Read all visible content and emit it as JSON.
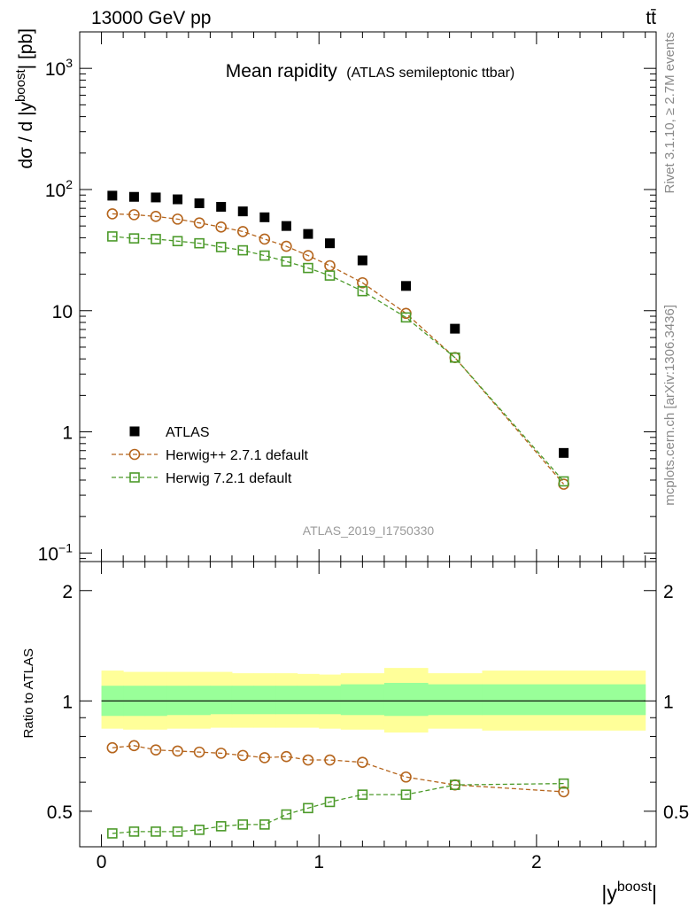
{
  "header": {
    "left_label": "13000 GeV pp",
    "right_label": "tt̄"
  },
  "side_labels": {
    "rivet": "Rivet 3.1.10, ≥ 2.7M events",
    "mcplots": "mcplots.cern.ch [arXiv:1306.3436]"
  },
  "chart_data": [
    {
      "type": "scatter",
      "title": "Mean rapidity",
      "subtitle": "(ATLAS semileptonic ttbar)",
      "ylabel_parts": {
        "pre": "dσ / d |y",
        "sup": "boost",
        "post": "| [pb]"
      },
      "xlabel_parts": {
        "pre": "|y",
        "sup": "boost",
        "post": "|"
      },
      "watermark": "ATLAS_2019_I1750330",
      "yscale": "log",
      "xlim": [
        -0.1,
        2.55
      ],
      "ylim": [
        0.085,
        2000
      ],
      "yticks": [
        {
          "value": 1000,
          "label": "10",
          "sup": "3"
        },
        {
          "value": 100,
          "label": "10",
          "sup": "2"
        },
        {
          "value": 10,
          "label": "10",
          "sup": ""
        },
        {
          "value": 1,
          "label": "1",
          "sup": ""
        },
        {
          "value": 0.1,
          "label": "10",
          "sup": "−1"
        }
      ],
      "legend_position": "lower-left",
      "series": [
        {
          "name": "ATLAS",
          "marker": "filled-square",
          "color": "#000000",
          "x": [
            0.05,
            0.15,
            0.25,
            0.35,
            0.45,
            0.55,
            0.65,
            0.75,
            0.85,
            0.95,
            1.05,
            1.2,
            1.4,
            1.625,
            2.125
          ],
          "y": [
            89,
            87,
            86,
            83,
            77,
            72,
            66,
            59,
            50,
            43,
            36,
            26,
            16,
            7.1,
            0.67
          ]
        },
        {
          "name": "Herwig++ 2.7.1 default",
          "marker": "open-circle",
          "color": "#b5651d",
          "x": [
            0.05,
            0.15,
            0.25,
            0.35,
            0.45,
            0.55,
            0.65,
            0.75,
            0.85,
            0.95,
            1.05,
            1.2,
            1.4,
            1.625,
            2.125
          ],
          "y": [
            63,
            62,
            60,
            57,
            53,
            49,
            45,
            39,
            34,
            28.5,
            23.5,
            17,
            9.5,
            4.1,
            0.37
          ]
        },
        {
          "name": "Herwig 7.2.1 default",
          "marker": "open-square",
          "color": "#4c9a2a",
          "x": [
            0.05,
            0.15,
            0.25,
            0.35,
            0.45,
            0.55,
            0.65,
            0.75,
            0.85,
            0.95,
            1.05,
            1.2,
            1.4,
            1.625,
            2.125
          ],
          "y": [
            41,
            39.5,
            39,
            37.5,
            36,
            33.5,
            31.5,
            28.5,
            25.5,
            22.5,
            19.5,
            14.5,
            8.8,
            4.1,
            0.39
          ]
        }
      ]
    },
    {
      "type": "scatter",
      "ylabel": "Ratio to ATLAS",
      "yscale": "log",
      "xlim": [
        -0.1,
        2.55
      ],
      "ylim": [
        0.4,
        2.4
      ],
      "xticks": [
        {
          "value": 0,
          "label": "0"
        },
        {
          "value": 1,
          "label": "1"
        },
        {
          "value": 2,
          "label": "2"
        }
      ],
      "yticks": [
        {
          "value": 2,
          "label": "2"
        },
        {
          "value": 1,
          "label": "1"
        },
        {
          "value": 0.5,
          "label": "0.5"
        }
      ],
      "bin_edges": [
        0,
        0.1,
        0.2,
        0.3,
        0.4,
        0.5,
        0.6,
        0.7,
        0.8,
        0.9,
        1.0,
        1.1,
        1.3,
        1.5,
        1.75,
        2.5
      ],
      "band_outer": {
        "color": "#ffff99",
        "low": [
          0.84,
          0.835,
          0.835,
          0.84,
          0.84,
          0.845,
          0.845,
          0.845,
          0.845,
          0.845,
          0.84,
          0.835,
          0.82,
          0.84,
          0.83
        ],
        "high": [
          1.21,
          1.2,
          1.2,
          1.2,
          1.2,
          1.2,
          1.19,
          1.19,
          1.19,
          1.185,
          1.18,
          1.19,
          1.23,
          1.19,
          1.21
        ]
      },
      "band_inner": {
        "color": "#99ff99",
        "low": [
          0.91,
          0.91,
          0.91,
          0.915,
          0.915,
          0.92,
          0.92,
          0.92,
          0.92,
          0.92,
          0.92,
          0.915,
          0.91,
          0.915,
          0.915
        ],
        "high": [
          1.1,
          1.1,
          1.1,
          1.1,
          1.1,
          1.1,
          1.1,
          1.1,
          1.1,
          1.1,
          1.1,
          1.11,
          1.12,
          1.11,
          1.11
        ]
      },
      "series": [
        {
          "name": "Herwig++ 2.7.1 default",
          "marker": "open-circle",
          "color": "#b5651d",
          "x": [
            0.05,
            0.15,
            0.25,
            0.35,
            0.45,
            0.55,
            0.65,
            0.75,
            0.85,
            0.95,
            1.05,
            1.2,
            1.4,
            1.625,
            2.125
          ],
          "y": [
            0.745,
            0.755,
            0.735,
            0.73,
            0.725,
            0.72,
            0.71,
            0.7,
            0.705,
            0.69,
            0.69,
            0.68,
            0.62,
            0.59,
            0.565
          ]
        },
        {
          "name": "Herwig 7.2.1 default",
          "marker": "open-square",
          "color": "#4c9a2a",
          "x": [
            0.05,
            0.15,
            0.25,
            0.35,
            0.45,
            0.55,
            0.65,
            0.75,
            0.85,
            0.95,
            1.05,
            1.2,
            1.4,
            1.625,
            2.125
          ],
          "y": [
            0.435,
            0.44,
            0.44,
            0.44,
            0.445,
            0.455,
            0.46,
            0.46,
            0.49,
            0.51,
            0.53,
            0.555,
            0.555,
            0.59,
            0.595
          ]
        }
      ]
    }
  ]
}
